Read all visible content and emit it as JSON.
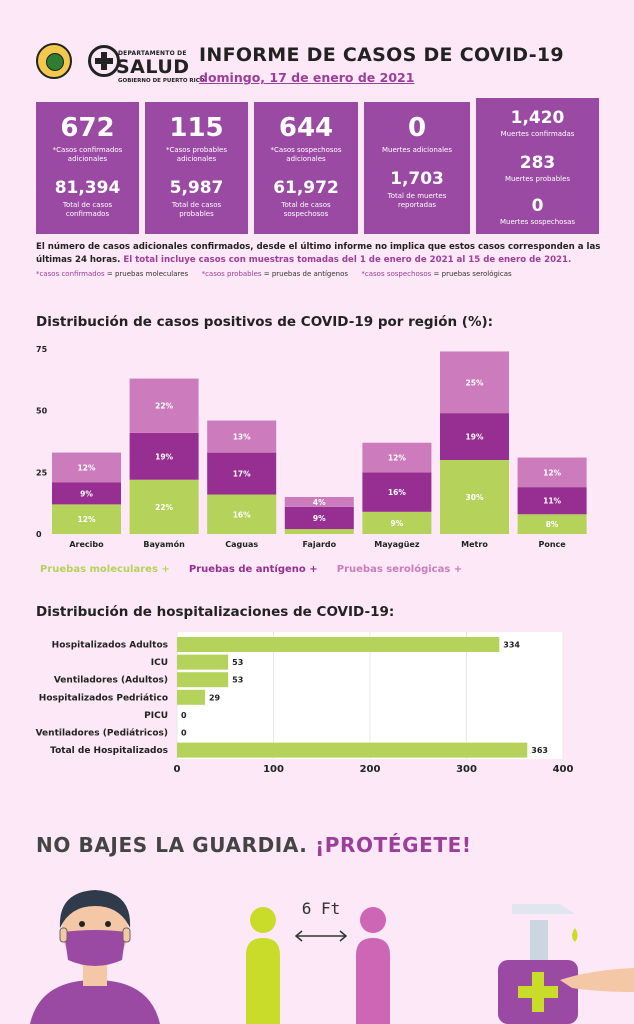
{
  "header": {
    "dept_small": "DEPARTAMENTO DE",
    "dept_big": "SALUD",
    "dept_gov": "GOBIERNO DE PUERTO RICO",
    "title": "INFORME DE CASOS DE COVID-19",
    "date": "domingo, 17 de enero de 2021"
  },
  "stats": {
    "confirmados": {
      "new": "672",
      "new_label": "*Casos confirmados adicionales",
      "total": "81,394",
      "total_label": "Total de casos confirmados"
    },
    "probables": {
      "new": "115",
      "new_label": "*Casos probables adicionales",
      "total": "5,987",
      "total_label": "Total de casos probables"
    },
    "sospechosos": {
      "new": "644",
      "new_label": "*Casos sospechosos adicionales",
      "total": "61,972",
      "total_label": "Total de casos sospechosos"
    },
    "muertes": {
      "new": "0",
      "new_label": "Muertes adicionales",
      "total": "1,703",
      "total_label": "Total de muertes reportadas"
    },
    "muertes_detalle": {
      "confirmadas": "1,420",
      "confirmadas_label": "Muertes confirmadas",
      "probables": "283",
      "probables_label": "Muertes probables",
      "sospechosas": "0",
      "sospechosas_label": "Muertes sospechosas"
    }
  },
  "notes": {
    "line1": "El número de casos adicionales confirmados, desde el último informe no implica que estos casos corresponden a las últimas 24 horas.",
    "line1_highlight": "El total incluye casos con muestras tomadas del 1 de enero de 2021 al 15 de enero de 2021.",
    "def1_term": "*casos confirmados",
    "def1_rest": " = pruebas moleculares",
    "def2_term": "*casos probables",
    "def2_rest": " = pruebas de antígenos",
    "def3_term": "*casos sospechosos",
    "def3_rest": " = pruebas serológicas"
  },
  "colors": {
    "molecular": "#b5d35a",
    "antigeno": "#962f91",
    "serologica": "#cc7cbc",
    "box": "#9b4aa4",
    "hosp_bar": "#b5d35a"
  },
  "chart_data": [
    {
      "type": "bar",
      "stacked": true,
      "title": "Distribución de casos positivos de COVID-19 por región (%):",
      "categories": [
        "Arecibo",
        "Bayamón",
        "Caguas",
        "Fajardo",
        "Mayagüez",
        "Metro",
        "Ponce"
      ],
      "series": [
        {
          "name": "Pruebas moleculares +",
          "values": [
            12,
            22,
            16,
            2,
            9,
            30,
            8
          ],
          "labels": [
            "12%",
            "22%",
            "16%",
            "",
            "9%",
            "30%",
            "8%"
          ]
        },
        {
          "name": "Pruebas de antígeno +",
          "values": [
            9,
            19,
            17,
            9,
            16,
            19,
            11
          ],
          "labels": [
            "9%",
            "19%",
            "17%",
            "9%",
            "16%",
            "19%",
            "11%"
          ]
        },
        {
          "name": "Pruebas serológicas +",
          "values": [
            12,
            22,
            13,
            4,
            12,
            25,
            12
          ],
          "labels": [
            "12%",
            "22%",
            "13%",
            "4%",
            "12%",
            "25%",
            "12%"
          ]
        }
      ],
      "yticks": [
        0,
        25,
        50,
        75
      ],
      "ylim": [
        0,
        75
      ]
    },
    {
      "type": "bar",
      "orientation": "horizontal",
      "title": "Distribución de hospitalizaciones de COVID-19:",
      "categories": [
        "Hospitalizados Adultos",
        "ICU",
        "Ventiladores (Adultos)",
        "Hospitalizados Pedriático",
        "PICU",
        "Ventiladores (Pediátricos)",
        "Total de Hospitalizados"
      ],
      "values": [
        334,
        53,
        53,
        29,
        0,
        0,
        363
      ],
      "xticks": [
        0,
        100,
        200,
        300,
        400
      ],
      "xlim": [
        0,
        400
      ]
    }
  ],
  "footer": {
    "part1": "NO BAJES LA GUARDIA. ",
    "part2": "¡PROTÉGETE!",
    "distance": "6 Ft"
  }
}
